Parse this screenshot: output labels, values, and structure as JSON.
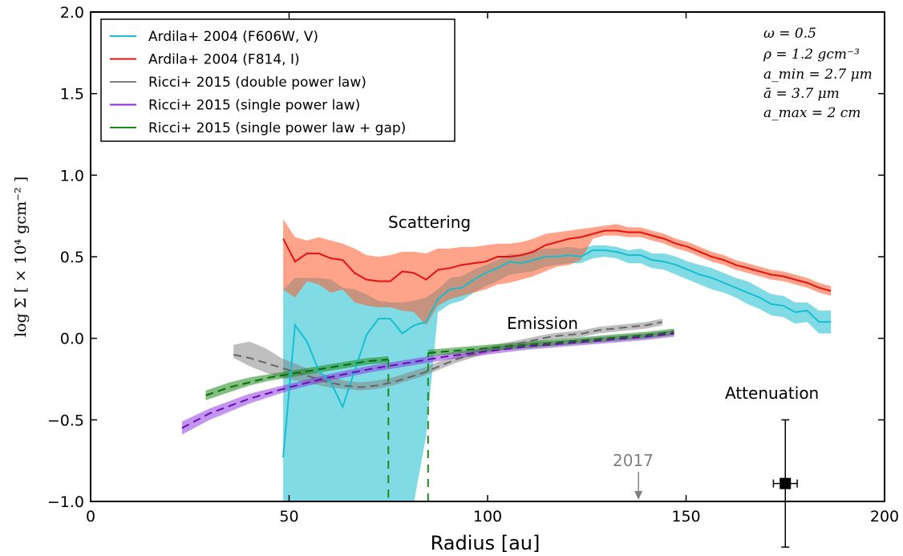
{
  "chart_data": {
    "type": "line",
    "xlabel": "Radius [au]",
    "ylabel": "log Σ [ × 10⁴ gcm⁻² ]",
    "xlim": [
      0,
      200
    ],
    "ylim": [
      -1.0,
      2.0
    ],
    "x_ticks": [
      "0",
      "50",
      "100",
      "150",
      "200"
    ],
    "y_ticks": [
      "−1.0",
      "−0.5",
      "0.0",
      "0.5",
      "1.0",
      "1.5",
      "2.0"
    ],
    "x_tick_values": [
      0,
      50,
      100,
      150,
      200
    ],
    "y_tick_values": [
      -1.0,
      -0.5,
      0.0,
      0.5,
      1.0,
      1.5,
      2.0
    ],
    "grid": false,
    "legend_position": "top-left",
    "legend": [
      {
        "label": "Ardila+ 2004 (F606W, V)",
        "color": "#17becf"
      },
      {
        "label": "Ardila+ 2004 (F814, I)",
        "color": "#e8100f"
      },
      {
        "label": "Ricci+ 2015 (double power law)",
        "color": "#808080"
      },
      {
        "label": "Ricci+ 2015 (single power law)",
        "color": "#8a2be2"
      },
      {
        "label": "Ricci+ 2015 (single power law + gap)",
        "color": "#1a8a1a"
      }
    ],
    "parameters": [
      "ω = 0.5",
      "ρ = 1.2 gcm⁻³",
      "a_min = 2.7 μm",
      "ā = 3.7 μm",
      "a_max = 2 cm"
    ],
    "annotations": {
      "scattering": "Scattering",
      "emission": "Emission",
      "attenuation": "Attenuation",
      "year": "2017"
    },
    "series": [
      {
        "name": "Ardila+ 2004 (F606W, V)",
        "color": "#17becf",
        "x": [
          48.5,
          51.5,
          54.5,
          57.5,
          60.5,
          63.5,
          66.5,
          69.5,
          72.5,
          75.5,
          78.5,
          81.5,
          84.5,
          87.5,
          90.5,
          93.5,
          96.5,
          99.5,
          102.5,
          105.5,
          108.5,
          111.5,
          114.5,
          117.5,
          120.5,
          123.5,
          126.5,
          129.5,
          132.5,
          135.5,
          138.5,
          141.5,
          144.5,
          147.5,
          150.5,
          153.5,
          156.5,
          159.5,
          162.5,
          165.5,
          168.5,
          171.5,
          174.5,
          177.5,
          180.5,
          183.5,
          186.5
        ],
        "y": [
          -0.73,
          0.08,
          -0.02,
          -0.2,
          -0.27,
          -0.42,
          -0.2,
          0.02,
          0.12,
          0.12,
          0.03,
          0.08,
          0.1,
          0.24,
          0.3,
          0.31,
          0.36,
          0.4,
          0.43,
          0.47,
          0.46,
          0.48,
          0.5,
          0.5,
          0.51,
          0.5,
          0.54,
          0.54,
          0.53,
          0.51,
          0.51,
          0.48,
          0.47,
          0.45,
          0.42,
          0.39,
          0.37,
          0.34,
          0.31,
          0.28,
          0.25,
          0.21,
          0.2,
          0.16,
          0.17,
          0.1,
          0.1
        ],
        "band_lower": [
          -1.0,
          -1.0,
          -1.0,
          -1.0,
          -1.0,
          -1.0,
          -1.0,
          -1.0,
          -1.0,
          -1.0,
          -1.0,
          -1.0,
          -0.6,
          0.16,
          0.21,
          0.23,
          0.28,
          0.32,
          0.35,
          0.39,
          0.4,
          0.41,
          0.44,
          0.45,
          0.46,
          0.46,
          0.49,
          0.5,
          0.49,
          0.46,
          0.46,
          0.43,
          0.42,
          0.39,
          0.36,
          0.33,
          0.3,
          0.28,
          0.25,
          0.21,
          0.18,
          0.14,
          0.13,
          0.09,
          0.1,
          0.03,
          0.03
        ],
        "band_upper": [
          0.3,
          0.37,
          0.37,
          0.37,
          0.36,
          0.31,
          0.3,
          0.27,
          0.23,
          0.22,
          0.22,
          0.23,
          0.25,
          0.3,
          0.37,
          0.38,
          0.42,
          0.45,
          0.48,
          0.52,
          0.51,
          0.54,
          0.55,
          0.55,
          0.56,
          0.55,
          0.57,
          0.57,
          0.56,
          0.54,
          0.55,
          0.52,
          0.52,
          0.5,
          0.47,
          0.45,
          0.43,
          0.4,
          0.37,
          0.35,
          0.31,
          0.27,
          0.26,
          0.22,
          0.22,
          0.17,
          0.17
        ]
      },
      {
        "name": "Ardila+ 2004 (F814, I)",
        "color": "#e8100f",
        "x": [
          48.5,
          51.5,
          54.5,
          57.5,
          60.5,
          63.5,
          66.5,
          69.5,
          72.5,
          75.5,
          78.5,
          81.5,
          84.5,
          87.5,
          90.5,
          93.5,
          96.5,
          99.5,
          102.5,
          105.5,
          108.5,
          111.5,
          114.5,
          117.5,
          120.5,
          123.5,
          126.5,
          129.5,
          132.5,
          135.5,
          138.5,
          141.5,
          144.5,
          147.5,
          150.5,
          153.5,
          156.5,
          159.5,
          162.5,
          165.5,
          168.5,
          171.5,
          174.5,
          177.5,
          180.5,
          183.5,
          186.5
        ],
        "y": [
          0.61,
          0.47,
          0.52,
          0.52,
          0.49,
          0.48,
          0.4,
          0.36,
          0.35,
          0.35,
          0.41,
          0.4,
          0.36,
          0.42,
          0.43,
          0.45,
          0.46,
          0.47,
          0.5,
          0.5,
          0.51,
          0.53,
          0.57,
          0.59,
          0.61,
          0.62,
          0.64,
          0.66,
          0.66,
          0.65,
          0.65,
          0.63,
          0.61,
          0.58,
          0.56,
          0.53,
          0.5,
          0.48,
          0.45,
          0.43,
          0.41,
          0.39,
          0.38,
          0.36,
          0.34,
          0.31,
          0.29
        ],
        "band_lower": [
          0.3,
          0.25,
          0.35,
          0.33,
          0.28,
          0.3,
          0.22,
          0.2,
          0.19,
          0.19,
          0.17,
          0.16,
          0.08,
          0.2,
          0.24,
          0.26,
          0.28,
          0.3,
          0.33,
          0.34,
          0.36,
          0.38,
          0.41,
          0.44,
          0.45,
          0.48,
          0.61,
          0.63,
          0.63,
          0.62,
          0.62,
          0.6,
          0.58,
          0.55,
          0.53,
          0.5,
          0.47,
          0.45,
          0.42,
          0.4,
          0.38,
          0.36,
          0.35,
          0.33,
          0.31,
          0.28,
          0.26
        ],
        "band_upper": [
          0.73,
          0.62,
          0.6,
          0.62,
          0.6,
          0.58,
          0.55,
          0.51,
          0.5,
          0.51,
          0.53,
          0.53,
          0.52,
          0.55,
          0.55,
          0.56,
          0.56,
          0.57,
          0.58,
          0.58,
          0.59,
          0.61,
          0.64,
          0.65,
          0.66,
          0.67,
          0.68,
          0.69,
          0.7,
          0.68,
          0.68,
          0.66,
          0.64,
          0.61,
          0.59,
          0.56,
          0.53,
          0.51,
          0.48,
          0.46,
          0.44,
          0.42,
          0.41,
          0.39,
          0.37,
          0.34,
          0.32
        ]
      },
      {
        "name": "Ricci+ 2015 (double power law)",
        "color": "#808080",
        "x": [
          36,
          40,
          44,
          48,
          52,
          56,
          60,
          64,
          68,
          72,
          76,
          80,
          84,
          88,
          92,
          96,
          100,
          104,
          108,
          112,
          116,
          120,
          124,
          128,
          132,
          136,
          140,
          144
        ],
        "y": [
          -0.1,
          -0.12,
          -0.15,
          -0.18,
          -0.21,
          -0.24,
          -0.27,
          -0.29,
          -0.3,
          -0.29,
          -0.27,
          -0.24,
          -0.21,
          -0.17,
          -0.13,
          -0.1,
          -0.07,
          -0.05,
          -0.03,
          -0.01,
          0.01,
          0.02,
          0.03,
          0.05,
          0.06,
          0.07,
          0.08,
          0.1
        ],
        "band_lower": [
          -0.12,
          -0.17,
          -0.21,
          -0.24,
          -0.26,
          -0.28,
          -0.3,
          -0.31,
          -0.32,
          -0.31,
          -0.29,
          -0.26,
          -0.23,
          -0.19,
          -0.15,
          -0.12,
          -0.09,
          -0.07,
          -0.05,
          -0.03,
          -0.01,
          0.0,
          0.01,
          0.03,
          0.04,
          0.05,
          0.06,
          0.08
        ],
        "band_upper": [
          -0.04,
          -0.02,
          -0.06,
          -0.12,
          -0.16,
          -0.2,
          -0.23,
          -0.26,
          -0.27,
          -0.26,
          -0.24,
          -0.21,
          -0.18,
          -0.14,
          -0.11,
          -0.08,
          -0.05,
          -0.03,
          -0.01,
          0.01,
          0.03,
          0.04,
          0.05,
          0.07,
          0.08,
          0.09,
          0.1,
          0.12
        ]
      },
      {
        "name": "Ricci+ 2015 (single power law)",
        "color": "#8a2be2",
        "x": [
          23,
          30,
          40,
          50,
          60,
          70,
          80,
          90,
          100,
          110,
          120,
          130,
          140,
          147
        ],
        "y": [
          -0.55,
          -0.46,
          -0.37,
          -0.3,
          -0.24,
          -0.19,
          -0.15,
          -0.11,
          -0.08,
          -0.05,
          -0.03,
          -0.01,
          0.01,
          0.03
        ],
        "band_lower": [
          -0.59,
          -0.5,
          -0.4,
          -0.32,
          -0.26,
          -0.21,
          -0.17,
          -0.13,
          -0.1,
          -0.07,
          -0.05,
          -0.03,
          -0.01,
          0.01
        ],
        "band_upper": [
          -0.51,
          -0.43,
          -0.34,
          -0.28,
          -0.22,
          -0.17,
          -0.13,
          -0.09,
          -0.06,
          -0.03,
          -0.01,
          0.01,
          0.03,
          0.05
        ]
      },
      {
        "name": "Ricci+ 2015 (single power law + gap)",
        "color": "#1a8a1a",
        "x": [
          29,
          35,
          40,
          45,
          50,
          55,
          60,
          65,
          70,
          75,
          75,
          85,
          85,
          90,
          100,
          110,
          120,
          130,
          140,
          147
        ],
        "y": [
          -0.35,
          -0.3,
          -0.27,
          -0.24,
          -0.22,
          -0.2,
          -0.18,
          -0.16,
          -0.14,
          -0.13,
          -1.0,
          -1.0,
          -0.09,
          -0.08,
          -0.06,
          -0.04,
          -0.02,
          0.0,
          0.02,
          0.04
        ],
        "band_x": [
          29,
          35,
          40,
          45,
          50,
          55,
          60,
          65,
          70,
          75
        ],
        "band_lower": [
          -0.38,
          -0.33,
          -0.29,
          -0.26,
          -0.24,
          -0.22,
          -0.2,
          -0.18,
          -0.16,
          -0.15
        ],
        "band_upper": [
          -0.32,
          -0.27,
          -0.24,
          -0.22,
          -0.2,
          -0.18,
          -0.16,
          -0.14,
          -0.12,
          -0.11
        ],
        "band2_x": [
          85,
          90,
          100,
          110,
          120,
          130,
          140,
          147
        ],
        "band2_lower": [
          -0.11,
          -0.1,
          -0.08,
          -0.06,
          -0.04,
          -0.02,
          0.0,
          0.02
        ],
        "band2_upper": [
          -0.07,
          -0.06,
          -0.04,
          -0.02,
          0.0,
          0.02,
          0.04,
          0.06
        ]
      }
    ],
    "attenuation_point": {
      "x": 175,
      "y": -0.89,
      "xerr": [
        3,
        3
      ],
      "yerr": [
        0.39,
        0.39
      ]
    },
    "year_marker_x": 138
  }
}
